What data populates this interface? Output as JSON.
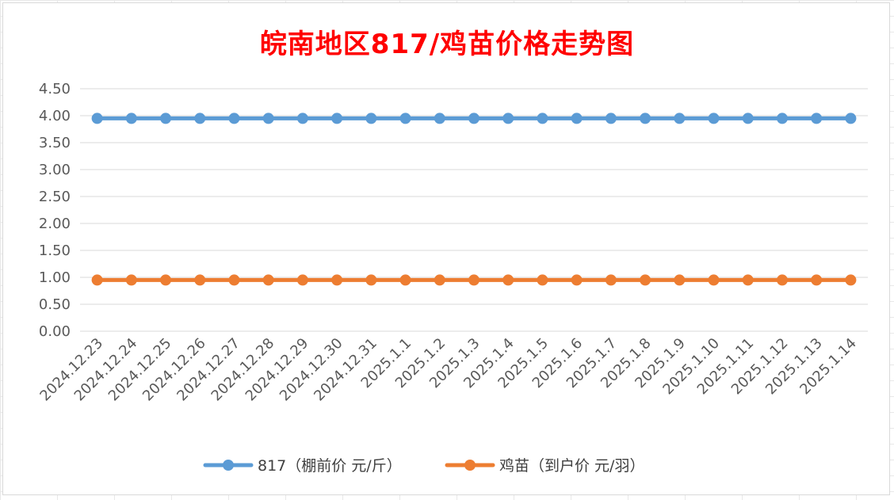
{
  "chart_data": {
    "type": "line",
    "title": "皖南地区817/鸡苗价格走势图",
    "categories": [
      "2024.12.23",
      "2024.12.24",
      "2024.12.25",
      "2024.12.26",
      "2024.12.27",
      "2024.12.28",
      "2024.12.29",
      "2024.12.30",
      "2024.12.31",
      "2025.1.1",
      "2025.1.2",
      "2025.1.3",
      "2025.1.4",
      "2025.1.5",
      "2025.1.6",
      "2025.1.7",
      "2025.1.8",
      "2025.1.9",
      "2025.1.10",
      "2025.1.11",
      "2025.1.12",
      "2025.1.13",
      "2025.1.14"
    ],
    "series": [
      {
        "name": "817（棚前价 元/斤）",
        "color": "#5b9bd5",
        "values": [
          3.95,
          3.95,
          3.95,
          3.95,
          3.95,
          3.95,
          3.95,
          3.95,
          3.95,
          3.95,
          3.95,
          3.95,
          3.95,
          3.95,
          3.95,
          3.95,
          3.95,
          3.95,
          3.95,
          3.95,
          3.95,
          3.95,
          3.95
        ]
      },
      {
        "name": "鸡苗（到户价 元/羽）",
        "color": "#ed7d31",
        "values": [
          0.95,
          0.95,
          0.95,
          0.95,
          0.95,
          0.95,
          0.95,
          0.95,
          0.95,
          0.95,
          0.95,
          0.95,
          0.95,
          0.95,
          0.95,
          0.95,
          0.95,
          0.95,
          0.95,
          0.95,
          0.95,
          0.95,
          0.95
        ]
      }
    ],
    "ylim": [
      0,
      4.5
    ],
    "yticks": [
      "0.00",
      "0.50",
      "1.00",
      "1.50",
      "2.00",
      "2.50",
      "3.00",
      "3.50",
      "4.00",
      "4.50"
    ],
    "xlabel": "",
    "ylabel": "",
    "grid": true,
    "legend": "bottom"
  }
}
